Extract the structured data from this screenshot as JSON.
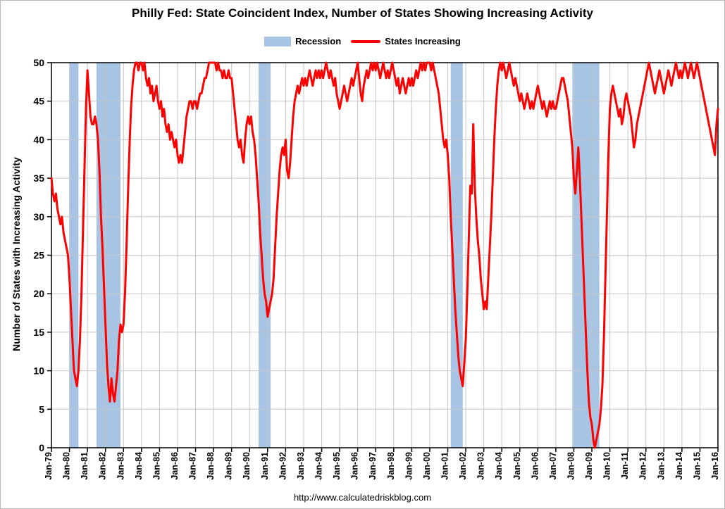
{
  "title": "Philly Fed: State Coincident Index, Number of States Showing Increasing Activity",
  "legend": {
    "recession_label": "Recession",
    "series_label": "States Increasing"
  },
  "footer": "http://www.calculatedriskblog.com",
  "chart_data": {
    "type": "line",
    "title": "Philly Fed: State Coincident Index, Number of States Showing Increasing Activity",
    "xlabel": "",
    "ylabel": "Number of States with Increasing Activity",
    "ylim": [
      0,
      50
    ],
    "ytick": 5,
    "grid": true,
    "legend_position": "top",
    "line_color": "#FF0000",
    "recession_color": "#A8C4E4",
    "grid_color": "#C6C6C6",
    "x_start": "1979-01",
    "x_interval": "month",
    "xtick_labels": [
      "Jan-79",
      "Jan-80",
      "Jan-81",
      "Jan-82",
      "Jan-83",
      "Jan-84",
      "Jan-85",
      "Jan-86",
      "Jan-87",
      "Jan-88",
      "Jan-89",
      "Jan-90",
      "Jan-91",
      "Jan-92",
      "Jan-93",
      "Jan-94",
      "Jan-95",
      "Jan-96",
      "Jan-97",
      "Jan-98",
      "Jan-99",
      "Jan-00",
      "Jan-01",
      "Jan-02",
      "Jan-03",
      "Jan-04",
      "Jan-05",
      "Jan-06",
      "Jan-07",
      "Jan-08",
      "Jan-09",
      "Jan-10",
      "Jan-11",
      "Jan-12",
      "Jan-13",
      "Jan-14",
      "Jan-15",
      "Jan-16"
    ],
    "recessions": [
      {
        "start": "1980-01",
        "end": "1980-07"
      },
      {
        "start": "1981-07",
        "end": "1982-11"
      },
      {
        "start": "1990-07",
        "end": "1991-03"
      },
      {
        "start": "2001-03",
        "end": "2001-11"
      },
      {
        "start": "2007-12",
        "end": "2009-06"
      }
    ],
    "series": [
      {
        "name": "States Increasing",
        "values": [
          35,
          33,
          32,
          33,
          31,
          30,
          29,
          30,
          28,
          27,
          26,
          25,
          22,
          18,
          14,
          10,
          9,
          8,
          10,
          14,
          20,
          28,
          36,
          44,
          49,
          46,
          43,
          42,
          42,
          43,
          42,
          40,
          36,
          30,
          26,
          21,
          16,
          11,
          8,
          6,
          9,
          7,
          6,
          8,
          10,
          14,
          16,
          15,
          16,
          20,
          26,
          33,
          39,
          44,
          47,
          49,
          50,
          50,
          49,
          50,
          50,
          49,
          50,
          48,
          47,
          48,
          46,
          47,
          45,
          46,
          47,
          45,
          44,
          45,
          43,
          44,
          42,
          41,
          42,
          40,
          41,
          40,
          39,
          40,
          38,
          37,
          38,
          37,
          39,
          41,
          43,
          44,
          45,
          45,
          44,
          45,
          45,
          44,
          45,
          46,
          46,
          47,
          48,
          48,
          49,
          50,
          50,
          50,
          50,
          50,
          49,
          50,
          49,
          49,
          48,
          49,
          48,
          48,
          49,
          48,
          48,
          46,
          44,
          42,
          40,
          39,
          40,
          38,
          37,
          40,
          42,
          43,
          42,
          43,
          41,
          40,
          38,
          35,
          32,
          28,
          25,
          22,
          20,
          19,
          17,
          18,
          19,
          20,
          22,
          26,
          30,
          33,
          36,
          38,
          39,
          38,
          40,
          36,
          35,
          37,
          40,
          43,
          45,
          46,
          47,
          46,
          47,
          48,
          47,
          48,
          47,
          48,
          49,
          48,
          47,
          48,
          49,
          48,
          49,
          48,
          49,
          48,
          49,
          50,
          49,
          48,
          49,
          48,
          47,
          48,
          46,
          45,
          44,
          45,
          46,
          47,
          46,
          45,
          46,
          47,
          48,
          47,
          48,
          49,
          50,
          48,
          46,
          45,
          47,
          48,
          49,
          48,
          49,
          50,
          49,
          50,
          49,
          50,
          49,
          48,
          49,
          50,
          49,
          48,
          49,
          48,
          49,
          50,
          49,
          48,
          47,
          48,
          46,
          47,
          48,
          47,
          46,
          47,
          48,
          47,
          48,
          47,
          48,
          49,
          48,
          49,
          50,
          49,
          50,
          49,
          50,
          50,
          50,
          49,
          50,
          49,
          48,
          47,
          46,
          44,
          42,
          40,
          39,
          40,
          38,
          35,
          30,
          26,
          22,
          18,
          15,
          12,
          10,
          9,
          8,
          11,
          14,
          20,
          27,
          34,
          33,
          42,
          34,
          30,
          27,
          25,
          22,
          20,
          18,
          19,
          18,
          22,
          26,
          30,
          35,
          40,
          44,
          47,
          49,
          50,
          49,
          50,
          49,
          48,
          49,
          50,
          49,
          48,
          47,
          48,
          47,
          46,
          45,
          46,
          45,
          44,
          45,
          46,
          45,
          44,
          45,
          44,
          45,
          46,
          47,
          46,
          45,
          44,
          45,
          44,
          43,
          44,
          45,
          44,
          45,
          44,
          44,
          45,
          46,
          47,
          48,
          48,
          47,
          46,
          45,
          43,
          41,
          39,
          35,
          33,
          36,
          39,
          35,
          30,
          25,
          20,
          15,
          10,
          6,
          4,
          3,
          1,
          0,
          1,
          2,
          3,
          5,
          8,
          14,
          22,
          30,
          38,
          44,
          46,
          47,
          46,
          45,
          44,
          43,
          44,
          42,
          43,
          45,
          46,
          45,
          44,
          43,
          41,
          39,
          40,
          42,
          43,
          44,
          45,
          46,
          47,
          48,
          49,
          50,
          49,
          48,
          47,
          46,
          47,
          48,
          49,
          48,
          47,
          46,
          47,
          48,
          49,
          48,
          47,
          48,
          49,
          50,
          49,
          48,
          49,
          48,
          49,
          50,
          49,
          48,
          49,
          50,
          49,
          48,
          49,
          50,
          49,
          48,
          47,
          46,
          45,
          44,
          43,
          42,
          41,
          40,
          39,
          38,
          42,
          44
        ]
      }
    ]
  }
}
